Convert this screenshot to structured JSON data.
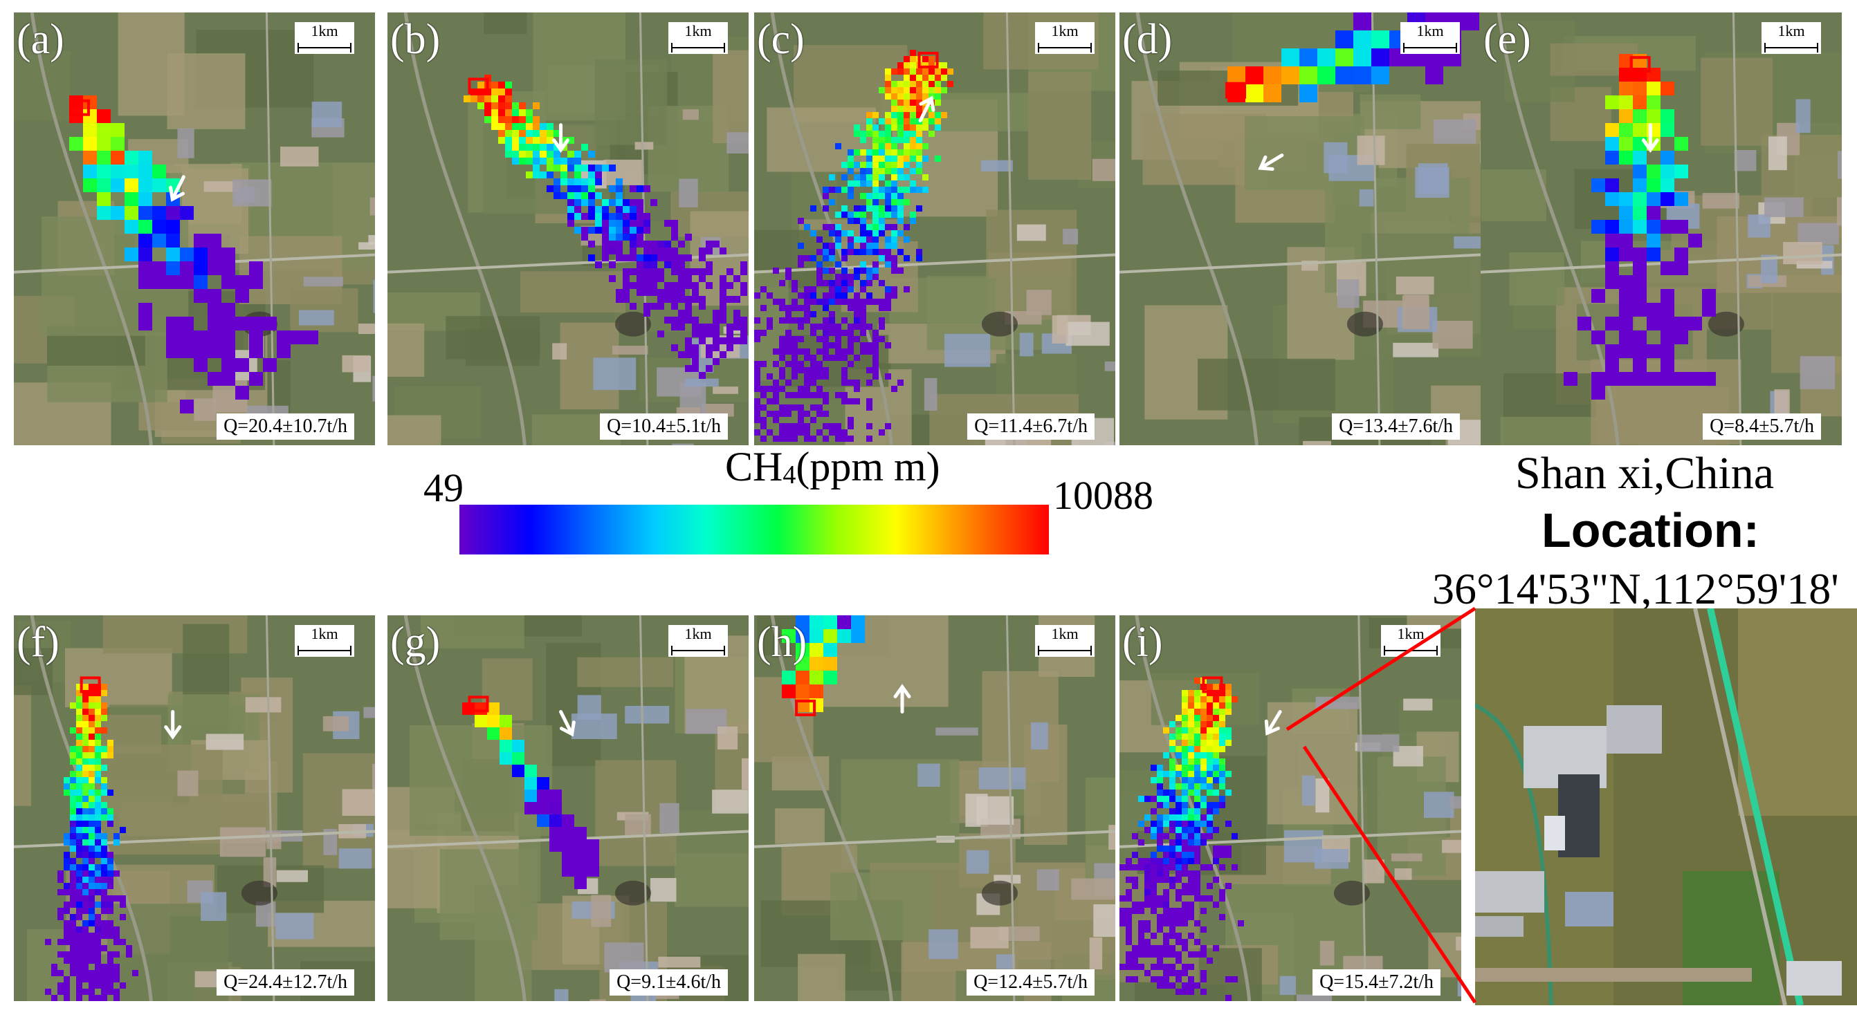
{
  "panels": [
    {
      "label": "(a)",
      "scale": "1km",
      "q": "Q=20.4±10.7t/h"
    },
    {
      "label": "(b)",
      "scale": "1km",
      "q": "Q=10.4±5.1t/h"
    },
    {
      "label": "(c)",
      "scale": "1km",
      "q": "Q=11.4±6.7t/h"
    },
    {
      "label": "(d)",
      "scale": "1km",
      "q": "Q=13.4±7.6t/h"
    },
    {
      "label": "(e)",
      "scale": "1km",
      "q": "Q=8.4±5.7t/h"
    },
    {
      "label": "(f)",
      "scale": "1km",
      "q": "Q=24.4±12.7t/h"
    },
    {
      "label": "(g)",
      "scale": "1km",
      "q": "Q=9.1±4.6t/h"
    },
    {
      "label": "(h)",
      "scale": "1km",
      "q": "Q=12.4±5.7t/h"
    },
    {
      "label": "(i)",
      "scale": "1km",
      "q": "Q=15.4±7.2t/h"
    }
  ],
  "colorbar": {
    "title_main": "CH",
    "title_sub": "4",
    "title_unit": "(ppm m)",
    "min": "49",
    "max": "10088"
  },
  "location": {
    "line1": "Shan xi,China",
    "line2": "Location:",
    "line3": "36°14'53\"N,112°59'18'"
  },
  "colors": {
    "accent_red": "#ff0000",
    "wind_arrow": "#ffffff"
  }
}
